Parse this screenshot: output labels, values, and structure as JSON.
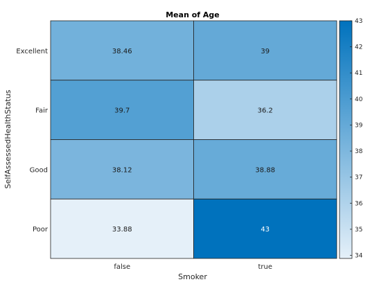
{
  "chart_data": {
    "type": "heatmap",
    "title": "Mean of Age",
    "xlabel": "Smoker",
    "ylabel": "SelfAssessedHealthStatus",
    "x_categories": [
      "false",
      "true"
    ],
    "y_categories": [
      "Excellent",
      "Fair",
      "Good",
      "Poor"
    ],
    "values": [
      [
        38.46,
        39
      ],
      [
        39.7,
        36.2
      ],
      [
        38.12,
        38.88
      ],
      [
        33.88,
        43
      ]
    ],
    "value_labels": [
      [
        "38.46",
        "39"
      ],
      [
        "39.7",
        "36.2"
      ],
      [
        "38.12",
        "38.88"
      ],
      [
        "33.88",
        "43"
      ]
    ],
    "colorbar": {
      "range": [
        33.88,
        43
      ],
      "ticks": [
        34,
        35,
        36,
        37,
        38,
        39,
        40,
        41,
        42,
        43
      ],
      "color_low": "#e5f0f9",
      "color_high": "#0072bd"
    }
  }
}
